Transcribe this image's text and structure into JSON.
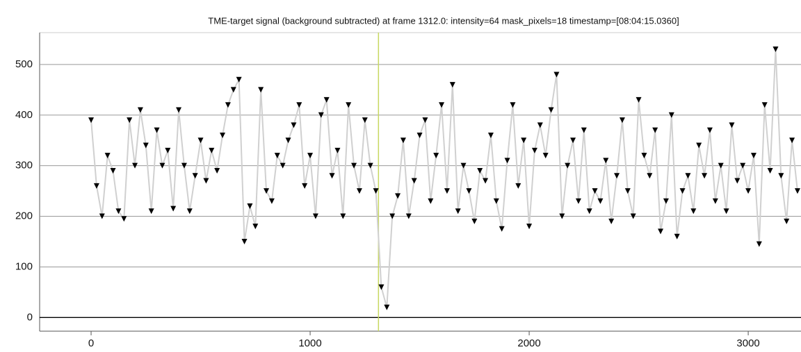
{
  "chart_data": {
    "type": "line",
    "title": "TME-target signal (background subtracted) at frame 1312.0: intensity=64 mask_pixels=18 timestamp=[08:04:15.0360]",
    "x": [
      0,
      25,
      50,
      75,
      100,
      125,
      150,
      175,
      200,
      225,
      250,
      275,
      300,
      325,
      350,
      375,
      400,
      425,
      450,
      475,
      500,
      525,
      550,
      575,
      600,
      625,
      650,
      675,
      700,
      725,
      750,
      775,
      800,
      825,
      850,
      875,
      900,
      925,
      950,
      975,
      1000,
      1025,
      1050,
      1075,
      1100,
      1125,
      1150,
      1175,
      1200,
      1225,
      1250,
      1275,
      1300,
      1325,
      1350,
      1375,
      1400,
      1425,
      1450,
      1475,
      1500,
      1525,
      1550,
      1575,
      1600,
      1625,
      1650,
      1675,
      1700,
      1725,
      1750,
      1775,
      1800,
      1825,
      1850,
      1875,
      1900,
      1925,
      1950,
      1975,
      2000,
      2025,
      2050,
      2075,
      2100,
      2125,
      2150,
      2175,
      2200,
      2225,
      2250,
      2275,
      2300,
      2325,
      2350,
      2375,
      2400,
      2425,
      2450,
      2475,
      2500,
      2525,
      2550,
      2575,
      2600,
      2625,
      2650,
      2675,
      2700,
      2725,
      2750,
      2775,
      2800,
      2825,
      2850,
      2875,
      2900,
      2925,
      2950,
      2975,
      3000,
      3025,
      3050,
      3075,
      3100,
      3125,
      3150,
      3175,
      3200,
      3225
    ],
    "series": [
      {
        "name": "signal",
        "color": "#000000",
        "line_color": "#d0d0d0",
        "values": [
          390,
          260,
          200,
          320,
          290,
          210,
          195,
          390,
          300,
          410,
          340,
          210,
          370,
          300,
          330,
          215,
          410,
          300,
          210,
          280,
          350,
          270,
          330,
          290,
          360,
          420,
          450,
          470,
          150,
          220,
          180,
          450,
          250,
          230,
          320,
          300,
          350,
          380,
          420,
          260,
          320,
          200,
          400,
          430,
          280,
          330,
          200,
          420,
          300,
          250,
          390,
          300,
          250,
          60,
          20,
          200,
          240,
          350,
          200,
          270,
          360,
          390,
          230,
          320,
          420,
          250,
          460,
          210,
          300,
          250,
          190,
          290,
          270,
          360,
          230,
          175,
          310,
          420,
          260,
          350,
          180,
          330,
          380,
          320,
          410,
          480,
          200,
          300,
          350,
          230,
          370,
          210,
          250,
          230,
          310,
          190,
          280,
          390,
          250,
          200,
          430,
          320,
          280,
          370,
          170,
          230,
          400,
          160,
          250,
          280,
          210,
          340,
          280,
          370,
          230,
          300,
          210,
          380,
          270,
          300,
          250,
          320,
          145,
          420,
          290,
          530,
          280,
          190,
          350,
          250
        ]
      }
    ],
    "cursor": {
      "x": 1312,
      "color": "#c8d860"
    },
    "xlim": [
      -235,
      3241
    ],
    "ylim": [
      -27,
      563
    ],
    "xticks": [
      0,
      1000,
      2000,
      3000
    ],
    "yticks": [
      0,
      100,
      200,
      300,
      400,
      500
    ],
    "grid": true
  }
}
